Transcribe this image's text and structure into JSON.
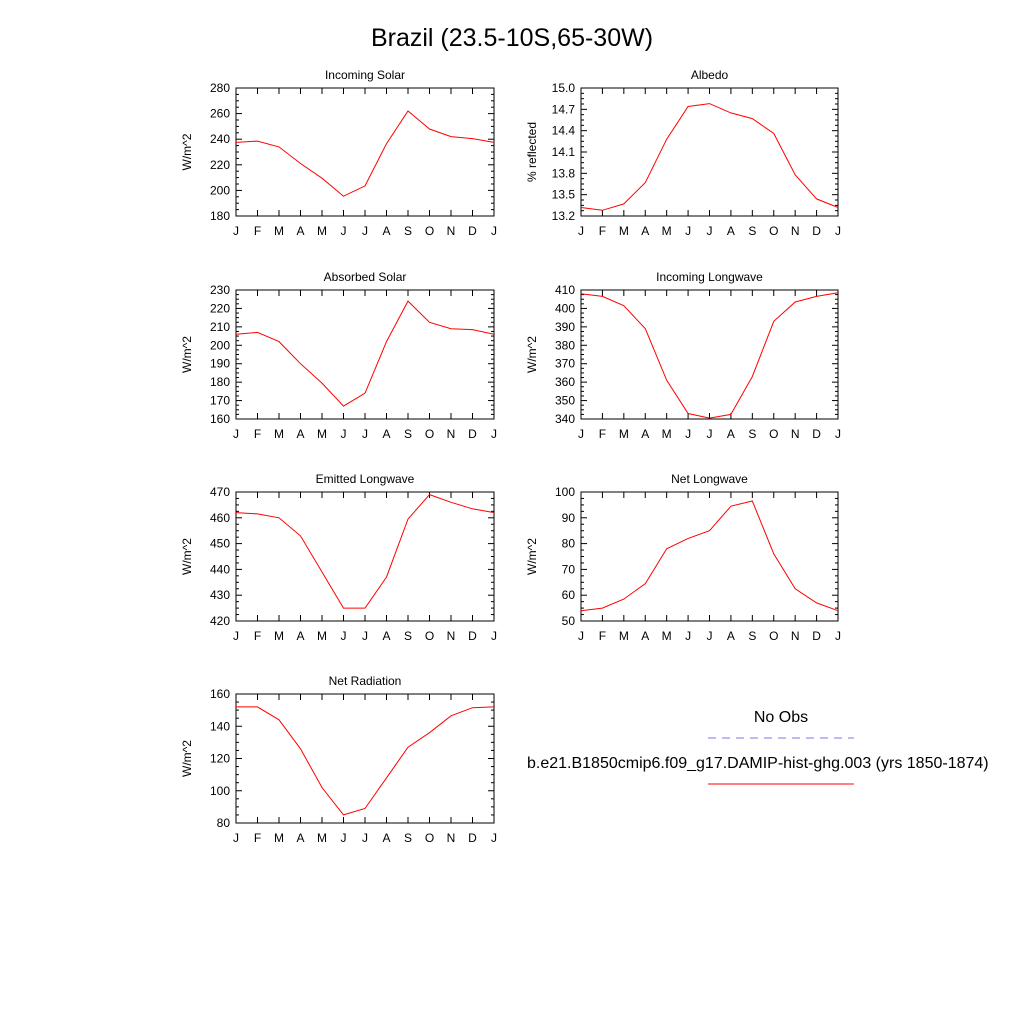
{
  "title": "Brazil (23.5-10S,65-30W)",
  "colors": {
    "model_line": "#ff0000",
    "obs_line": "#7777ee",
    "axis": "#000000"
  },
  "chart_data": [
    {
      "type": "line",
      "title": "Incoming Solar",
      "ylabel": "W/m^2",
      "xlabel": "",
      "categories": [
        "J",
        "F",
        "M",
        "A",
        "M",
        "J",
        "J",
        "A",
        "S",
        "O",
        "N",
        "D",
        "J"
      ],
      "ylim": [
        180,
        280
      ],
      "yticks": [
        180,
        200,
        220,
        240,
        260,
        280
      ],
      "ytick_labels": [
        "180",
        "200",
        "220",
        "240",
        "260",
        "280"
      ],
      "series": [
        {
          "values": [
            237.5,
            238.5,
            234,
            221,
            209.5,
            195.5,
            203.5,
            236.5,
            262,
            248,
            242,
            240.5,
            237.5
          ]
        }
      ]
    },
    {
      "type": "line",
      "title": "Albedo",
      "ylabel": "% reflected",
      "xlabel": "",
      "categories": [
        "J",
        "F",
        "M",
        "A",
        "M",
        "J",
        "J",
        "A",
        "S",
        "O",
        "N",
        "D",
        "J"
      ],
      "ylim": [
        13.2,
        15.0
      ],
      "yticks": [
        13.2,
        13.5,
        13.8,
        14.1,
        14.4,
        14.7,
        15.0
      ],
      "ytick_labels": [
        "13.2",
        "13.5",
        "13.8",
        "14.1",
        "14.4",
        "14.7",
        "15.0"
      ],
      "series": [
        {
          "values": [
            13.32,
            13.28,
            13.37,
            13.67,
            14.28,
            14.74,
            14.78,
            14.65,
            14.57,
            14.36,
            13.78,
            13.44,
            13.32
          ]
        }
      ]
    },
    {
      "type": "line",
      "title": "Absorbed Solar",
      "ylabel": "W/m^2",
      "xlabel": "",
      "categories": [
        "J",
        "F",
        "M",
        "A",
        "M",
        "J",
        "J",
        "A",
        "S",
        "O",
        "N",
        "D",
        "J"
      ],
      "ylim": [
        160,
        230
      ],
      "yticks": [
        160,
        170,
        180,
        190,
        200,
        210,
        220,
        230
      ],
      "ytick_labels": [
        "160",
        "170",
        "180",
        "190",
        "200",
        "210",
        "220",
        "230"
      ],
      "series": [
        {
          "values": [
            206,
            207,
            202,
            190,
            179.5,
            167,
            174,
            202,
            224,
            212.5,
            209,
            208.5,
            206
          ]
        }
      ]
    },
    {
      "type": "line",
      "title": "Incoming Longwave",
      "ylabel": "W/m^2",
      "xlabel": "",
      "categories": [
        "J",
        "F",
        "M",
        "A",
        "M",
        "J",
        "J",
        "A",
        "S",
        "O",
        "N",
        "D",
        "J"
      ],
      "ylim": [
        340,
        410
      ],
      "yticks": [
        340,
        350,
        360,
        370,
        380,
        390,
        400,
        410
      ],
      "ytick_labels": [
        "340",
        "350",
        "360",
        "370",
        "380",
        "390",
        "400",
        "410"
      ],
      "series": [
        {
          "values": [
            408,
            406.5,
            401.5,
            389,
            361,
            343,
            340.5,
            342.5,
            363,
            393,
            403.5,
            406.5,
            408.5
          ]
        }
      ]
    },
    {
      "type": "line",
      "title": "Emitted Longwave",
      "ylabel": "W/m^2",
      "xlabel": "",
      "categories": [
        "J",
        "F",
        "M",
        "A",
        "M",
        "J",
        "J",
        "A",
        "S",
        "O",
        "N",
        "D",
        "J"
      ],
      "ylim": [
        420,
        470
      ],
      "yticks": [
        420,
        430,
        440,
        450,
        460,
        470
      ],
      "ytick_labels": [
        "420",
        "430",
        "440",
        "450",
        "460",
        "470"
      ],
      "series": [
        {
          "values": [
            462,
            461.5,
            460,
            453,
            439,
            425,
            425,
            437,
            459.5,
            469,
            466,
            463.5,
            462
          ]
        }
      ]
    },
    {
      "type": "line",
      "title": "Net Longwave",
      "ylabel": "W/m^2",
      "xlabel": "",
      "categories": [
        "J",
        "F",
        "M",
        "A",
        "M",
        "J",
        "J",
        "A",
        "S",
        "O",
        "N",
        "D",
        "J"
      ],
      "ylim": [
        50,
        100
      ],
      "yticks": [
        50,
        60,
        70,
        80,
        90,
        100
      ],
      "ytick_labels": [
        "50",
        "60",
        "70",
        "80",
        "90",
        "100"
      ],
      "series": [
        {
          "values": [
            54,
            55,
            58.5,
            64.5,
            78,
            82,
            85,
            94.5,
            96.5,
            76,
            62.5,
            57,
            54
          ]
        }
      ]
    },
    {
      "type": "line",
      "title": "Net Radiation",
      "ylabel": "W/m^2",
      "xlabel": "",
      "categories": [
        "J",
        "F",
        "M",
        "A",
        "M",
        "J",
        "J",
        "A",
        "S",
        "O",
        "N",
        "D",
        "J"
      ],
      "ylim": [
        80,
        160
      ],
      "yticks": [
        80,
        100,
        120,
        140,
        160
      ],
      "ytick_labels": [
        "80",
        "100",
        "120",
        "140",
        "160"
      ],
      "series": [
        {
          "values": [
            152,
            152,
            144,
            126,
            102,
            85,
            89,
            108,
            127,
            136,
            146.5,
            151.5,
            152
          ]
        }
      ]
    }
  ],
  "legend": {
    "entries": [
      {
        "label": "No Obs",
        "style": "dashed",
        "color": "#7777ee"
      },
      {
        "label": "b.e21.B1850cmip6.f09_g17.DAMIP-hist-ghg.003 (yrs 1850-1874)",
        "style": "solid",
        "color": "#ff0000"
      }
    ]
  }
}
